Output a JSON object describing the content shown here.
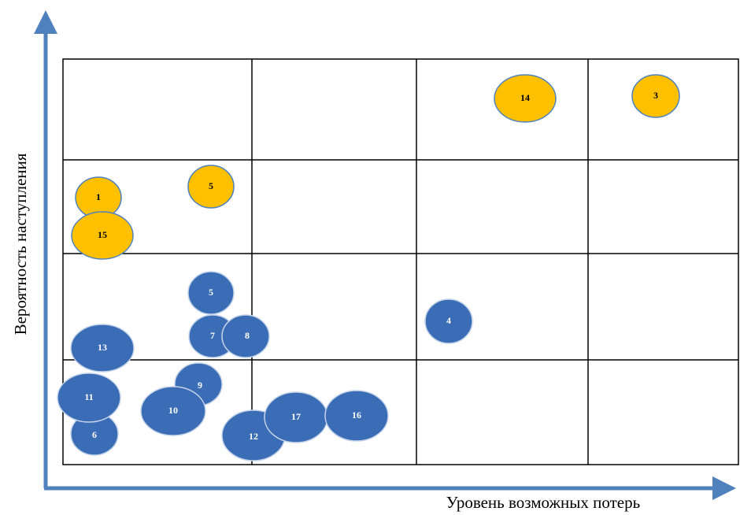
{
  "axes": {
    "y_label": "Вероятность наступления",
    "x_label": "Уровень возможных потерь"
  },
  "nodes": [
    {
      "label": "14"
    },
    {
      "label": "3"
    },
    {
      "label": "1"
    },
    {
      "label": "5"
    },
    {
      "label": "15"
    },
    {
      "label": "5"
    },
    {
      "label": "4"
    },
    {
      "label": "7"
    },
    {
      "label": "8"
    },
    {
      "label": "13"
    },
    {
      "label": "9"
    },
    {
      "label": "6"
    },
    {
      "label": "11"
    },
    {
      "label": "10"
    },
    {
      "label": "12"
    },
    {
      "label": "17"
    },
    {
      "label": "16"
    }
  ]
}
